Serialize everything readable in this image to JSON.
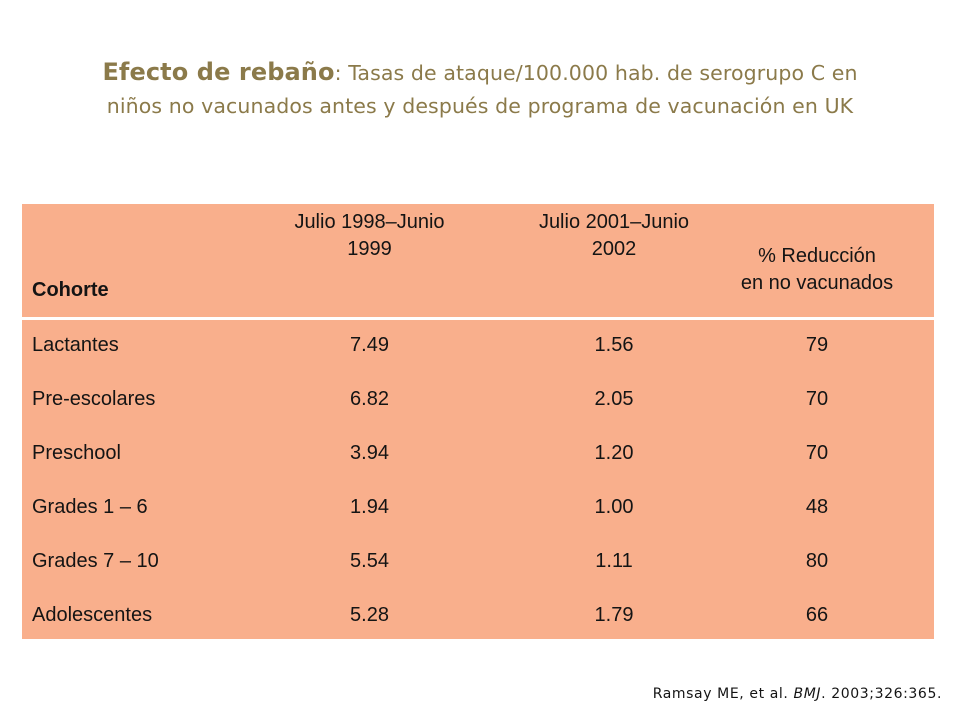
{
  "title": {
    "strong": "Efecto de rebaño",
    "rest_line1": ": Tasas de ataque/100.000 hab. de serogrupo C en",
    "line2": "niños no vacunados antes y después de programa de vacunación en UK"
  },
  "table": {
    "headers": {
      "cohorte": "Cohorte",
      "period1_line1": "Julio 1998–Junio",
      "period1_line2": "1999",
      "period2_line1": "Julio 2001–Junio",
      "period2_line2": "2002",
      "reduction_line1": "% Reducción",
      "reduction_line2": "en no vacunados"
    },
    "rows": [
      {
        "cohort": "Lactantes",
        "before": "7.49",
        "after": "1.56",
        "reduction": "79"
      },
      {
        "cohort": "Pre-escolares",
        "before": "6.82",
        "after": "2.05",
        "reduction": "70"
      },
      {
        "cohort": "Preschool",
        "before": "3.94",
        "after": "1.20",
        "reduction": "70"
      },
      {
        "cohort": "Grades 1 – 6",
        "before": "1.94",
        "after": "1.00",
        "reduction": "48"
      },
      {
        "cohort": "Grades 7 – 10",
        "before": "5.54",
        "after": "1.11",
        "reduction": "80"
      },
      {
        "cohort": "Adolescentes",
        "before": "5.28",
        "after": "1.79",
        "reduction": "66"
      }
    ]
  },
  "citation": {
    "authors": "Ramsay ME, et al. ",
    "journal": "BMJ",
    "details": ". 2003;326:365."
  },
  "colors": {
    "title": "#8b7a4a",
    "table_background": "#f9af8c",
    "text": "#141414"
  }
}
